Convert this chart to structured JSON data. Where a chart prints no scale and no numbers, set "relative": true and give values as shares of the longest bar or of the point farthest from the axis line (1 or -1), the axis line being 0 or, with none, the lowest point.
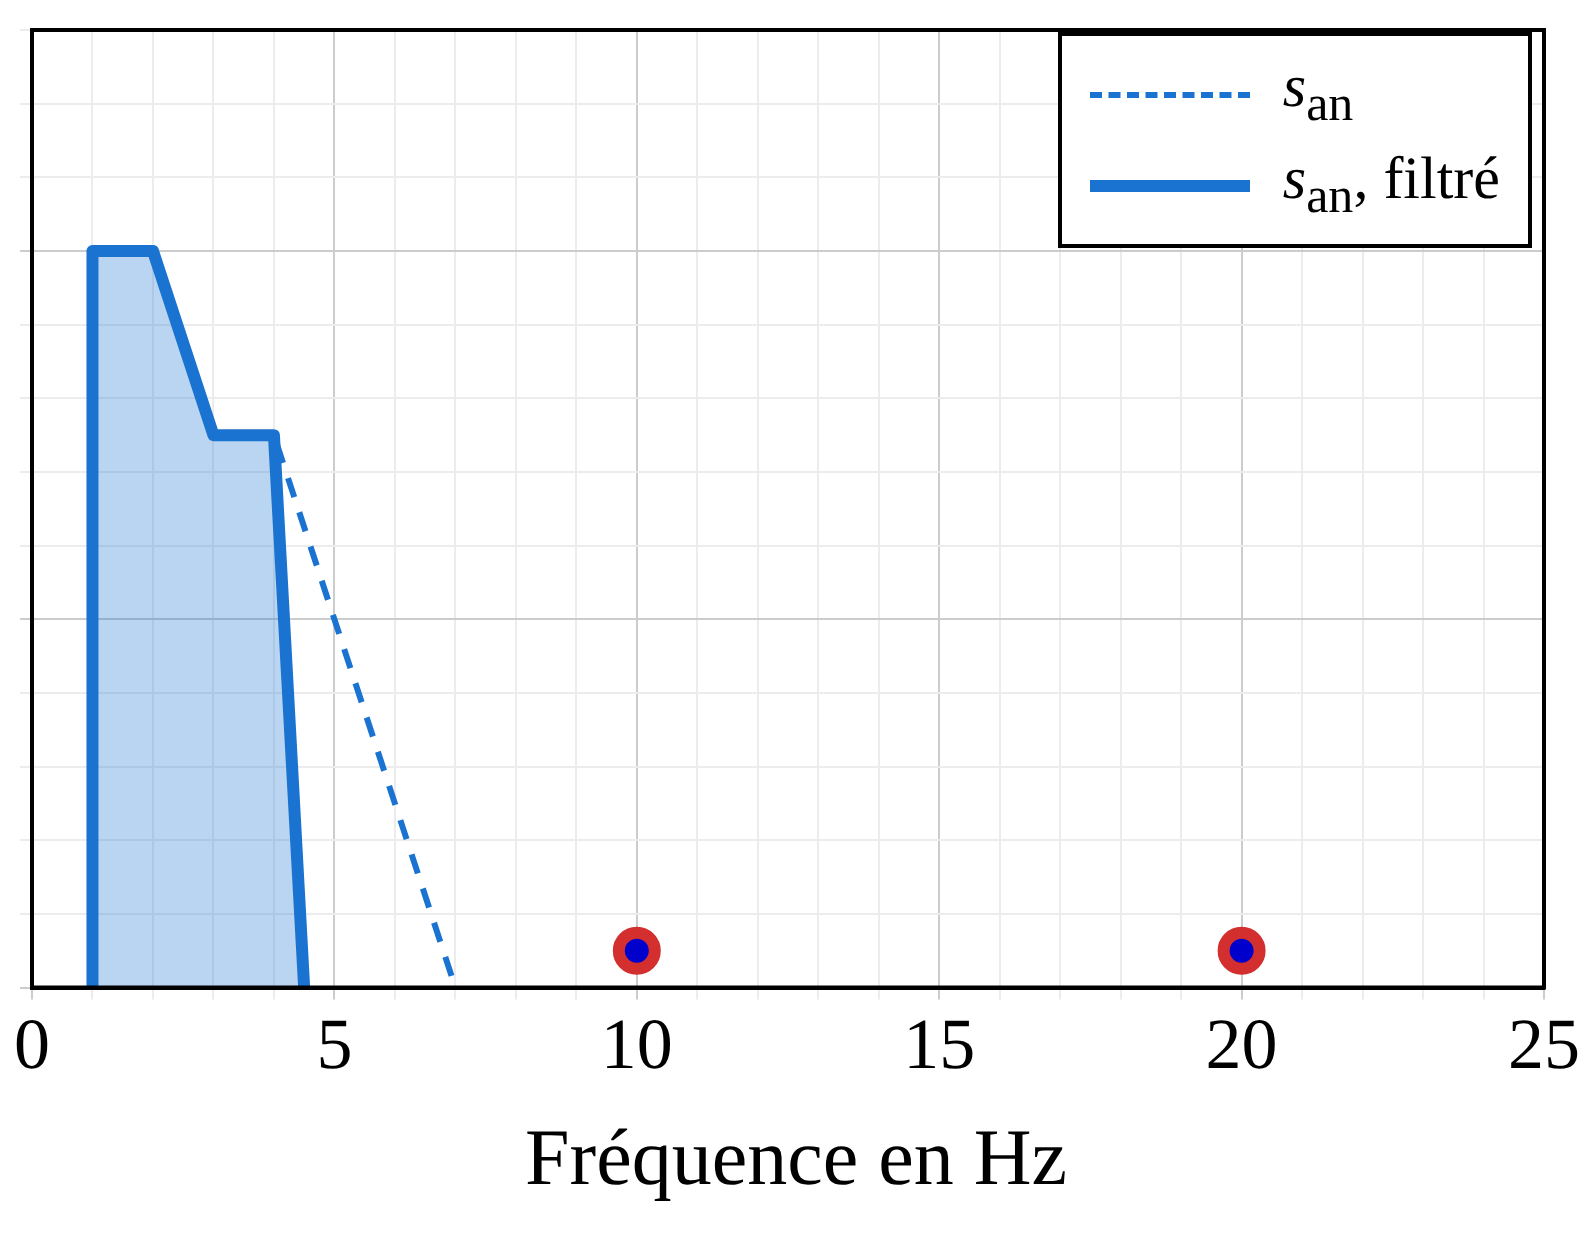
{
  "chart_data": {
    "type": "line",
    "xlabel": "Fréquence en Hz",
    "relative": true,
    "xlim": [
      0,
      25
    ],
    "xticks": [
      0,
      5,
      10,
      15,
      20,
      25
    ],
    "grid": true,
    "legend": "top right",
    "tick_labels": "x",
    "series": [
      {
        "name": "s$_{an}$",
        "color": "#1a73d0",
        "line_style": "dashed",
        "x": [
          1,
          2,
          3,
          4,
          7
        ],
        "values": [
          1,
          1,
          0.75,
          0.75,
          0
        ]
      },
      {
        "name": "s$_{an}$, filtré",
        "color": "#1a73d0",
        "type": "area",
        "line_style": "solid",
        "x": [
          1,
          1,
          2,
          3,
          4,
          4.5
        ],
        "values": [
          0,
          1,
          1,
          0.75,
          0.75,
          0
        ]
      },
      {
        "type": "scatter",
        "color": "#d32f2f",
        "marker": "circle",
        "x": [
          10,
          20
        ],
        "values": [
          0.05,
          0.05
        ]
      }
    ]
  }
}
